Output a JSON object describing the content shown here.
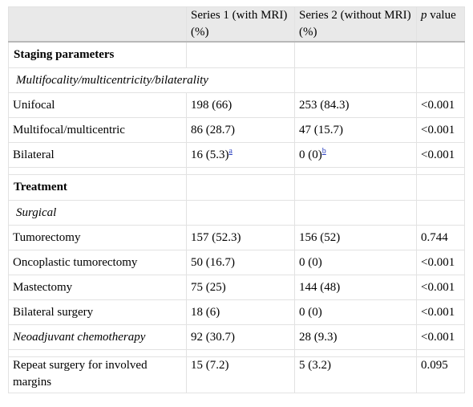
{
  "header": {
    "col1": "",
    "col2": "Series 1 (with MRI) (%)",
    "col3": "Series 2 (without MRI) (%)",
    "col4_italic": "p",
    "col4_rest": " value"
  },
  "sections": {
    "staging": "Staging parameters",
    "multifocality": "Multifocality/multicentricity/bilaterality",
    "treatment": "Treatment",
    "surgical": "Surgical"
  },
  "rows": {
    "unifocal": {
      "label": "Unifocal",
      "s1": "198 (66)",
      "s2": "253 (84.3)",
      "p": "<0.001"
    },
    "multifocal": {
      "label": "Multifocal/multicentric",
      "s1": "86 (28.7)",
      "s2": "47 (15.7)",
      "p": "<0.001"
    },
    "bilateral": {
      "label": "Bilateral",
      "s1": "16 (5.3)",
      "s1_fn": "a",
      "s2": "0 (0)",
      "s2_fn": "b",
      "p": "<0.001"
    },
    "tumorectomy": {
      "label": "Tumorectomy",
      "s1": "157 (52.3)",
      "s2": "156 (52)",
      "p": "0.744"
    },
    "oncoplastic": {
      "label": "Oncoplastic tumorectomy",
      "s1": "50 (16.7)",
      "s2": "0 (0)",
      "p": "<0.001"
    },
    "mastectomy": {
      "label": "Mastectomy",
      "s1": "75 (25)",
      "s2": "144 (48)",
      "p": "<0.001"
    },
    "bilateral_surgery": {
      "label": "Bilateral surgery",
      "s1": "18 (6)",
      "s2": "0 (0)",
      "p": "<0.001"
    },
    "neoadjuvant": {
      "label": "Neoadjuvant chemotherapy",
      "s1": "92 (30.7)",
      "s2": "28 (9.3)",
      "p": "<0.001"
    },
    "repeat_surgery": {
      "label": "Repeat surgery for involved margins",
      "s1": "15 (7.2)",
      "s2": "5 (3.2)",
      "p": "0.095"
    }
  }
}
